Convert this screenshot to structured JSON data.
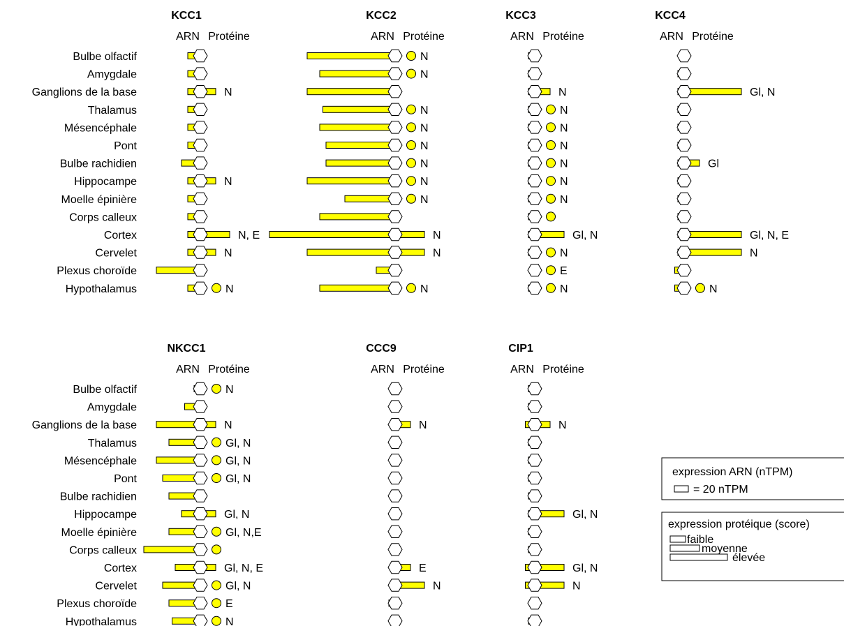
{
  "colors": {
    "fill": "#ffff00",
    "stroke": "#000000",
    "background": "#ffffff"
  },
  "chart_data": {
    "type": "bar",
    "tissues": [
      "Bulbe olfactif",
      "Amygdale",
      "Ganglions de la base",
      "Thalamus",
      "Mésencéphale",
      "Pont",
      "Bulbe rachidien",
      "Hippocampe",
      "Moelle épinière",
      "Corps calleux",
      "Cortex",
      "Cervelet",
      "Plexus choroïde",
      "Hypothalamus"
    ],
    "column_headers": {
      "rna": "ARN",
      "protein": "Protéine"
    },
    "units": {
      "rna": "nTPM",
      "protein": "score (0 = none, 1 = faible, 2 = moyenne, 3 = élevée)"
    },
    "genes": [
      {
        "name": "KCC1",
        "rna": [
          4,
          4,
          4,
          4,
          4,
          4,
          6,
          4,
          4,
          4,
          4,
          4,
          14,
          4
        ],
        "protein": [
          null,
          null,
          1,
          null,
          null,
          null,
          null,
          1,
          null,
          null,
          2,
          1,
          null,
          0
        ],
        "labels": [
          "",
          "",
          "N",
          "",
          "",
          "",
          "",
          "N",
          "",
          "",
          "N, E",
          "N",
          "",
          "N"
        ]
      },
      {
        "name": "KCC2",
        "rna": [
          28,
          24,
          28,
          23,
          24,
          22,
          22,
          28,
          16,
          24,
          40,
          28,
          6,
          24
        ],
        "protein": [
          0,
          0,
          null,
          0,
          0,
          0,
          0,
          0,
          0,
          null,
          2,
          2,
          null,
          0
        ],
        "labels": [
          "N",
          "N",
          "",
          "N",
          "N",
          "N",
          "N",
          "N",
          "N",
          "",
          "N",
          "N",
          "",
          "N"
        ]
      },
      {
        "name": "KCC3",
        "rna": [
          2,
          2,
          2,
          2,
          2,
          2,
          2,
          2,
          2,
          2,
          2,
          2,
          1,
          2
        ],
        "protein": [
          null,
          null,
          1,
          0,
          0,
          0,
          0,
          0,
          0,
          0,
          2,
          0,
          0,
          0
        ],
        "labels": [
          "",
          "",
          "N",
          "N",
          "N",
          "N",
          "N",
          "N",
          "N",
          "",
          "Gl, N",
          "N",
          "E",
          "N"
        ]
      },
      {
        "name": "KCC4",
        "rna": [
          0,
          2,
          2,
          2,
          2,
          2,
          2,
          2,
          2,
          2,
          2,
          2,
          3,
          3
        ],
        "protein": [
          null,
          null,
          3,
          null,
          null,
          null,
          1,
          null,
          null,
          null,
          3,
          3,
          null,
          0
        ],
        "labels": [
          "",
          "",
          "Gl, N",
          "",
          "",
          "",
          "Gl",
          "",
          "",
          "",
          "Gl, N, E",
          "N",
          "",
          "N"
        ]
      },
      {
        "name": "NKCC1",
        "rna": [
          2,
          5,
          14,
          10,
          14,
          12,
          10,
          6,
          10,
          18,
          8,
          12,
          10,
          9
        ],
        "protein": [
          0,
          null,
          1,
          0,
          0,
          0,
          null,
          1,
          0,
          0,
          1,
          0,
          0,
          0
        ],
        "labels": [
          "N",
          "",
          "N",
          "Gl, N",
          "Gl, N",
          "Gl, N",
          "",
          "Gl, N",
          "Gl, N,E",
          "",
          "Gl, N, E",
          "Gl, N",
          "E",
          "N"
        ]
      },
      {
        "name": "CCC9",
        "rna": [
          0,
          0,
          0,
          0,
          0,
          0,
          0,
          0,
          0,
          0,
          0,
          0,
          2,
          0
        ],
        "protein": [
          null,
          null,
          1,
          null,
          null,
          null,
          null,
          null,
          null,
          null,
          1,
          2,
          null,
          null
        ],
        "labels": [
          "",
          "",
          "N",
          "",
          "",
          "",
          "",
          "",
          "",
          "",
          "E",
          "N",
          "",
          ""
        ]
      },
      {
        "name": "CIP1",
        "rna": [
          2,
          2,
          3,
          2,
          2,
          2,
          2,
          2,
          2,
          2,
          3,
          3,
          1,
          2
        ],
        "protein": [
          null,
          null,
          1,
          null,
          null,
          null,
          null,
          2,
          null,
          null,
          2,
          2,
          null,
          null
        ],
        "labels": [
          "",
          "",
          "N",
          "",
          "",
          "",
          "",
          "Gl, N",
          "",
          "",
          "Gl, N",
          "N",
          "",
          ""
        ]
      }
    ]
  },
  "legend_rna": {
    "title": "expression ARN (nTPM)",
    "item": "= 20 nTPM"
  },
  "legend_protein": {
    "title": "expression protéique (score)",
    "items": [
      "faible",
      "moyenne",
      "élevée"
    ]
  }
}
